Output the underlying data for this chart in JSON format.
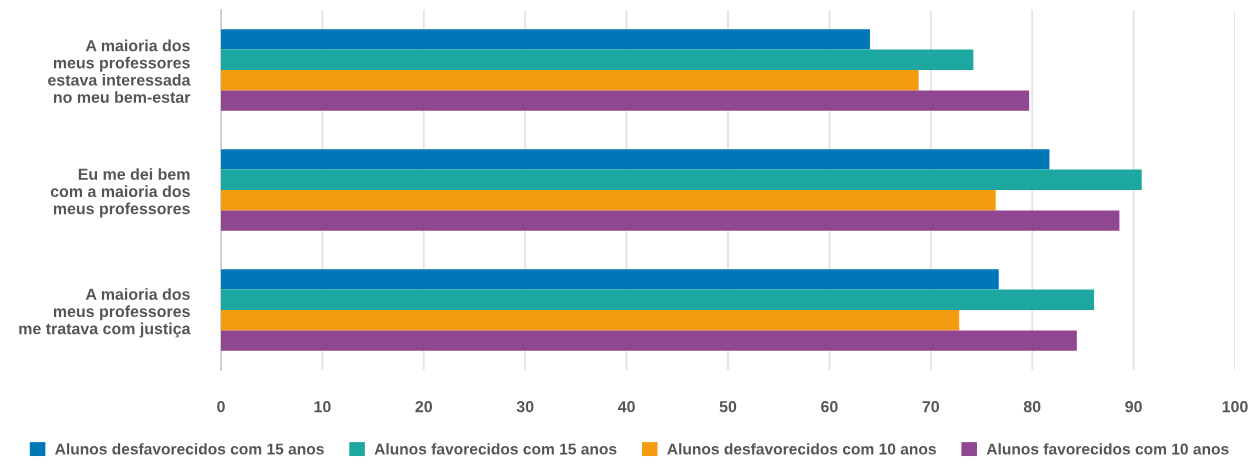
{
  "chart_data": {
    "type": "bar",
    "orientation": "horizontal",
    "categories": [
      "A maioria dos\nmeus professores\nestava interessada\nno meu bem-estar",
      "Eu me dei bem\ncom a maioria dos\nmeus professores",
      "A maioria dos\nmeus professores\nme tratava com justiça"
    ],
    "series": [
      {
        "name": "Alunos desfavorecidos com 15 anos",
        "color": "#0077b6",
        "values": [
          64.0,
          81.7,
          76.7
        ]
      },
      {
        "name": "Alunos favorecidos com 15 anos",
        "color": "#1ca8a0",
        "values": [
          74.2,
          90.8,
          86.1
        ]
      },
      {
        "name": "Alunos desfavorecidos com 10 anos",
        "color": "#f49b10",
        "values": [
          68.8,
          76.4,
          72.8
        ]
      },
      {
        "name": "Alunos favorecidos com 10 anos",
        "color": "#914691",
        "values": [
          79.7,
          88.6,
          84.4
        ]
      }
    ],
    "xlim": [
      0,
      100
    ],
    "xticks": [
      0,
      10,
      20,
      30,
      40,
      50,
      60,
      70,
      80,
      90,
      100
    ],
    "grid": "x",
    "legend": "bottom"
  }
}
